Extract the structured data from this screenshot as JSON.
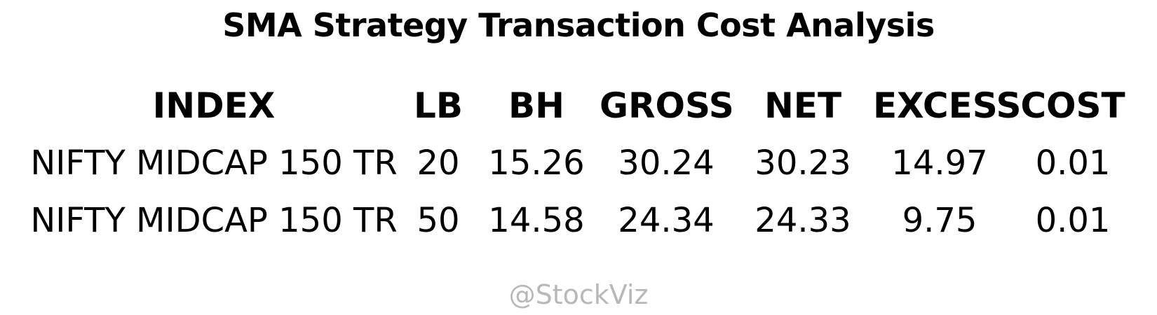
{
  "chart_data": {
    "type": "table",
    "title": "SMA Strategy Transaction Cost Analysis",
    "columns": [
      "INDEX",
      "LB",
      "BH",
      "GROSS",
      "NET",
      "EXCESS",
      "COST"
    ],
    "rows": [
      [
        "NIFTY MIDCAP 150 TR",
        "20",
        "15.26",
        "30.24",
        "30.23",
        "14.97",
        "0.01"
      ],
      [
        "NIFTY MIDCAP 150 TR",
        "50",
        "14.58",
        "24.34",
        "24.33",
        "9.75",
        "0.01"
      ]
    ]
  },
  "watermark": "@StockViz"
}
